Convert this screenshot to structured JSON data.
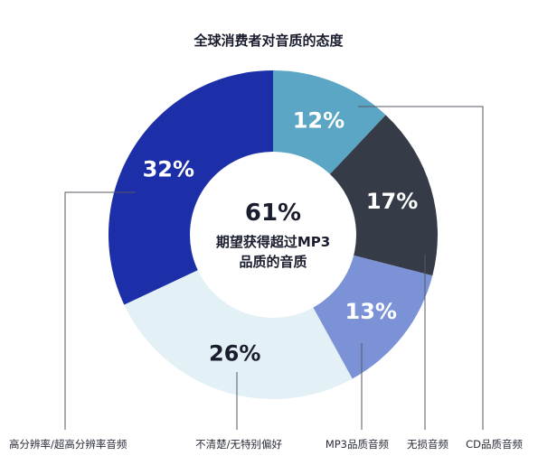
{
  "colors": {
    "background": "#ffffff",
    "text_dark": "#1a1d2e"
  },
  "chart_data": {
    "type": "pie",
    "style": "donut",
    "title": "全球消费者对音质的态度",
    "center_value": "61%",
    "center_text_line1": "期望获得超过MP3",
    "center_text_line2": "品质的音质",
    "slices": [
      {
        "label": "CD品质音频",
        "value": 12,
        "display": "12%",
        "color": "#5aa6c4",
        "text_color": "#ffffff"
      },
      {
        "label": "无损音频",
        "value": 17,
        "display": "17%",
        "color": "#363b48",
        "text_color": "#ffffff"
      },
      {
        "label": "MP3品质音频",
        "value": 13,
        "display": "13%",
        "color": "#7b93d6",
        "text_color": "#ffffff"
      },
      {
        "label": "不清楚/无特别偏好",
        "value": 26,
        "display": "26%",
        "color": "#e3f0f5",
        "text_color": "#1a1d2e"
      },
      {
        "label": "高分辨率/超高分辨率音频",
        "value": 32,
        "display": "32%",
        "color": "#1c2fa8",
        "text_color": "#ffffff"
      }
    ],
    "legend_placement": "bottom"
  }
}
